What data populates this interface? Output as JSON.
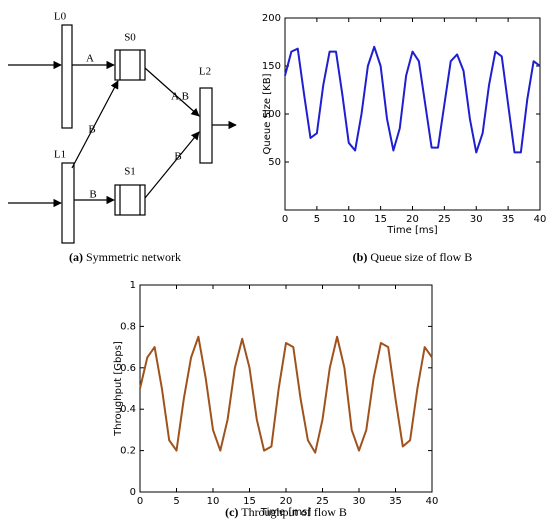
{
  "diagram": {
    "nodes": [
      "L0",
      "S0",
      "L2",
      "L1",
      "S1"
    ],
    "edge_labels": [
      "A",
      "B",
      "A,B",
      "B",
      "B"
    ],
    "caption_tag": "(a)",
    "caption": "Symmetric network"
  },
  "chart_data": [
    {
      "type": "line",
      "caption_tag": "(b)",
      "caption": "Queue size of flow B",
      "x_label": "Time [ms]",
      "y_label": "Queue Size [KB]",
      "xlim": [
        0,
        40
      ],
      "xticks": [
        0,
        5,
        10,
        15,
        20,
        25,
        30,
        35,
        40
      ],
      "ylim": [
        0,
        200
      ],
      "yticks": [
        50,
        100,
        150,
        200
      ],
      "x": [
        0,
        1,
        2,
        3,
        4,
        5,
        6,
        7,
        8,
        9,
        10,
        11,
        12,
        13,
        14,
        15,
        16,
        17,
        18,
        19,
        20,
        21,
        22,
        23,
        24,
        25,
        26,
        27,
        28,
        29,
        30,
        31,
        32,
        33,
        34,
        35,
        36,
        37,
        38,
        39,
        40
      ],
      "series": [
        {
          "name": "flow B",
          "color": "#1f1fd0",
          "values": [
            140,
            165,
            168,
            120,
            75,
            80,
            130,
            165,
            165,
            120,
            70,
            62,
            100,
            150,
            170,
            150,
            95,
            62,
            85,
            140,
            165,
            155,
            110,
            65,
            65,
            110,
            155,
            162,
            145,
            95,
            60,
            80,
            130,
            165,
            160,
            110,
            60,
            60,
            115,
            155,
            150
          ]
        }
      ]
    },
    {
      "type": "line",
      "caption_tag": "(c)",
      "caption": "Throughput of flow B",
      "x_label": "Time [ms]",
      "y_label": "Throughput [Gbps]",
      "xlim": [
        0,
        40
      ],
      "xticks": [
        0,
        5,
        10,
        15,
        20,
        25,
        30,
        35,
        40
      ],
      "ylim": [
        0,
        1
      ],
      "yticks": [
        0,
        0.2,
        0.4,
        0.6,
        0.8,
        1
      ],
      "x": [
        0,
        1,
        2,
        3,
        4,
        5,
        6,
        7,
        8,
        9,
        10,
        11,
        12,
        13,
        14,
        15,
        16,
        17,
        18,
        19,
        20,
        21,
        22,
        23,
        24,
        25,
        26,
        27,
        28,
        29,
        30,
        31,
        32,
        33,
        34,
        35,
        36,
        37,
        38,
        39,
        40
      ],
      "series": [
        {
          "name": "flow B",
          "color": "#a0521d",
          "values": [
            0.5,
            0.65,
            0.7,
            0.5,
            0.25,
            0.2,
            0.45,
            0.65,
            0.75,
            0.55,
            0.3,
            0.2,
            0.35,
            0.6,
            0.74,
            0.6,
            0.35,
            0.2,
            0.22,
            0.5,
            0.72,
            0.7,
            0.45,
            0.25,
            0.19,
            0.35,
            0.6,
            0.75,
            0.6,
            0.3,
            0.2,
            0.3,
            0.55,
            0.72,
            0.7,
            0.45,
            0.22,
            0.25,
            0.5,
            0.7,
            0.65
          ]
        }
      ]
    }
  ]
}
